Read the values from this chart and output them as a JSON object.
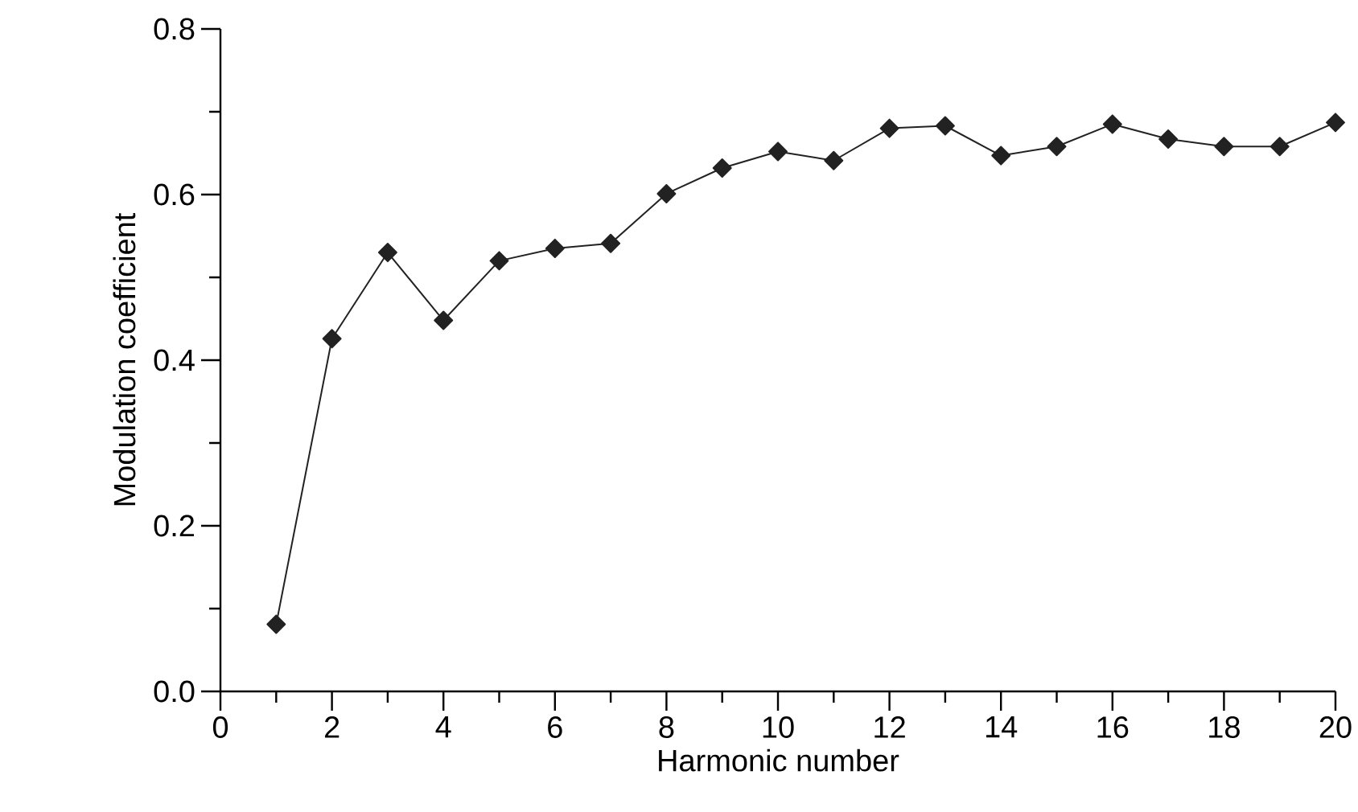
{
  "chart_data": {
    "type": "line",
    "xlabel": "Harmonic number",
    "ylabel": "Modulation coefficient",
    "x": [
      1,
      2,
      3,
      4,
      5,
      6,
      7,
      8,
      9,
      10,
      11,
      12,
      13,
      14,
      15,
      16,
      17,
      18,
      19,
      20
    ],
    "series": [
      {
        "color": "#222222",
        "values": [
          0.081,
          0.426,
          0.53,
          0.448,
          0.52,
          0.535,
          0.541,
          0.601,
          0.632,
          0.652,
          0.641,
          0.68,
          0.683,
          0.647,
          0.658,
          0.685,
          0.667,
          0.658,
          0.658,
          0.687
        ]
      }
    ],
    "xlim": [
      0,
      20
    ],
    "xticks": [
      0,
      {
        "value": 1,
        "label": null
      },
      2,
      {
        "value": 3,
        "label": null
      },
      4,
      {
        "value": 5,
        "label": null
      },
      6,
      {
        "value": 7,
        "label": null
      },
      8,
      {
        "value": 9,
        "label": null
      },
      10,
      {
        "value": 11,
        "label": null
      },
      12,
      {
        "value": 13,
        "label": null
      },
      14,
      {
        "value": 15,
        "label": null
      },
      16,
      {
        "value": 17,
        "label": null
      },
      18,
      {
        "value": 19,
        "label": null
      },
      20
    ],
    "ylim": [
      0,
      0.8
    ],
    "yticks": [
      {
        "value": 0,
        "label": "0.0"
      },
      {
        "value": 0.1,
        "label": null
      },
      0.2,
      {
        "value": 0.3,
        "label": null
      },
      0.4,
      {
        "value": 0.5,
        "label": null
      },
      0.6,
      {
        "value": 0.7,
        "label": null
      },
      0.8
    ],
    "marker": "diamond",
    "line_style": "solid"
  }
}
